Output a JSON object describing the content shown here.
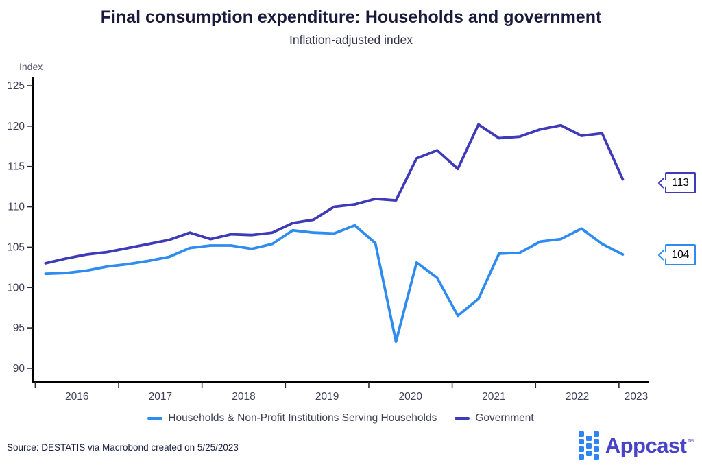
{
  "header": {
    "title": "Final consumption expenditure: Households and government",
    "subtitle": "Inflation-adjusted index"
  },
  "y_axis": {
    "label": "Index",
    "ticks": [
      125,
      120,
      115,
      110,
      105,
      100,
      95,
      90
    ]
  },
  "x_axis": {
    "years": [
      "2016",
      "2017",
      "2018",
      "2019",
      "2020",
      "2021",
      "2022",
      "2023"
    ]
  },
  "legend": [
    {
      "label": "Households & Non-Profit Institutions Serving Households",
      "color": "#2e8bf0"
    },
    {
      "label": "Government",
      "color": "#3e3ab8"
    }
  ],
  "callouts": [
    {
      "value": "113",
      "color": "#3e3ab8"
    },
    {
      "value": "104",
      "color": "#2e8bf0"
    }
  ],
  "source": "Source: DESTATIS via Macrobond created on 5/25/2023",
  "logo": {
    "text": "Appcast",
    "tm": "™"
  },
  "chart_data": {
    "type": "line",
    "title": "Final consumption expenditure: Households and government",
    "subtitle": "Inflation-adjusted index",
    "ylabel": "Index",
    "ylim": [
      88.3,
      126.1
    ],
    "yticks": [
      90,
      95,
      100,
      105,
      110,
      115,
      120,
      125
    ],
    "grid": false,
    "legend_position": "bottom",
    "x": [
      "2016 Q1",
      "2016 Q2",
      "2016 Q3",
      "2016 Q4",
      "2017 Q1",
      "2017 Q2",
      "2017 Q3",
      "2017 Q4",
      "2018 Q1",
      "2018 Q2",
      "2018 Q3",
      "2018 Q4",
      "2019 Q1",
      "2019 Q2",
      "2019 Q3",
      "2019 Q4",
      "2020 Q1",
      "2020 Q2",
      "2020 Q3",
      "2020 Q4",
      "2021 Q1",
      "2021 Q2",
      "2021 Q3",
      "2021 Q4",
      "2022 Q1",
      "2022 Q2",
      "2022 Q3",
      "2022 Q4",
      "2023 Q1"
    ],
    "series": [
      {
        "id": "households",
        "name": "Households & Non-Profit Institutions Serving Households",
        "color": "#2e8bf0",
        "end_label": "104",
        "values": [
          101.7,
          101.8,
          102.1,
          102.6,
          102.9,
          103.3,
          103.8,
          104.9,
          105.2,
          105.2,
          104.8,
          105.4,
          107.1,
          106.8,
          106.7,
          107.7,
          105.5,
          93.3,
          103.1,
          101.2,
          96.5,
          98.6,
          104.2,
          104.3,
          105.7,
          106.0,
          107.3,
          105.4,
          104.1
        ]
      },
      {
        "id": "government",
        "name": "Government",
        "color": "#3e3ab8",
        "end_label": "113",
        "values": [
          103.0,
          103.6,
          104.1,
          104.4,
          104.9,
          105.4,
          105.9,
          106.8,
          106.0,
          106.6,
          106.5,
          106.8,
          108.0,
          108.4,
          110.0,
          110.3,
          111.0,
          110.8,
          116.0,
          117.0,
          114.7,
          120.2,
          118.5,
          118.7,
          119.6,
          120.1,
          118.8,
          119.1,
          113.4
        ]
      }
    ]
  }
}
